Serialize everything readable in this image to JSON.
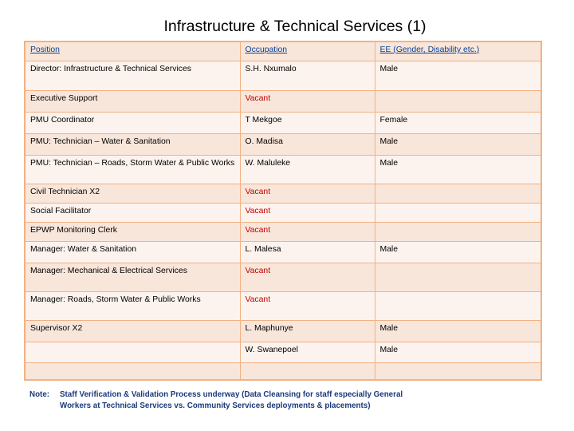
{
  "title": "Infrastructure & Technical Services (1)",
  "table": {
    "headers": [
      "Position",
      "Occupation",
      "EE (Gender, Disability etc.)"
    ],
    "rows": [
      {
        "position": "Director: Infrastructure & Technical Services",
        "occupation": "S.H. Nxumalo",
        "ee": "Male",
        "vacant": false
      },
      {
        "position": "Executive Support",
        "occupation": "Vacant",
        "ee": "",
        "vacant": true
      },
      {
        "position": "PMU Coordinator",
        "occupation": "T Mekgoe",
        "ee": "Female",
        "vacant": false
      },
      {
        "position": "PMU: Technician – Water & Sanitation",
        "occupation": "O. Madisa",
        "ee": "Male",
        "vacant": false
      },
      {
        "position": "PMU: Technician – Roads, Storm Water & Public Works",
        "occupation": "W. Maluleke",
        "ee": "Male",
        "vacant": false
      },
      {
        "position": "Civil Technician X2",
        "occupation": "Vacant",
        "ee": "",
        "vacant": true
      },
      {
        "position": "Social Facilitator",
        "occupation": "Vacant",
        "ee": "",
        "vacant": true
      },
      {
        "position": "EPWP Monitoring Clerk",
        "occupation": "Vacant",
        "ee": "",
        "vacant": true
      },
      {
        "position": "Manager: Water & Sanitation",
        "occupation": "L. Malesa",
        "ee": "Male",
        "vacant": false
      },
      {
        "position": "Manager: Mechanical & Electrical Services",
        "occupation": "Vacant",
        "ee": "",
        "vacant": true
      },
      {
        "position": "Manager: Roads, Storm Water & Public Works",
        "occupation": "Vacant",
        "ee": "",
        "vacant": true
      },
      {
        "position": "Supervisor X2",
        "occupation": "L. Maphunye",
        "ee": "Male",
        "vacant": false
      },
      {
        "position": "",
        "occupation": "W. Swanepoel",
        "ee": "Male",
        "vacant": false
      },
      {
        "position": "",
        "occupation": "",
        "ee": "",
        "vacant": false
      }
    ]
  },
  "note": {
    "label": "Note:",
    "line1": "Staff Verification & Validation Process underway (Data Cleansing for staff especially General",
    "line2": "Workers at Technical Services vs. Community Services deployments & placements)"
  },
  "colors": {
    "border": "#f2b183",
    "row_dark": "#f9e6da",
    "row_light": "#fdf3ee",
    "header_text": "#0b3f91",
    "vacant_text": "#c00000",
    "note_text": "#1a3a7a"
  }
}
